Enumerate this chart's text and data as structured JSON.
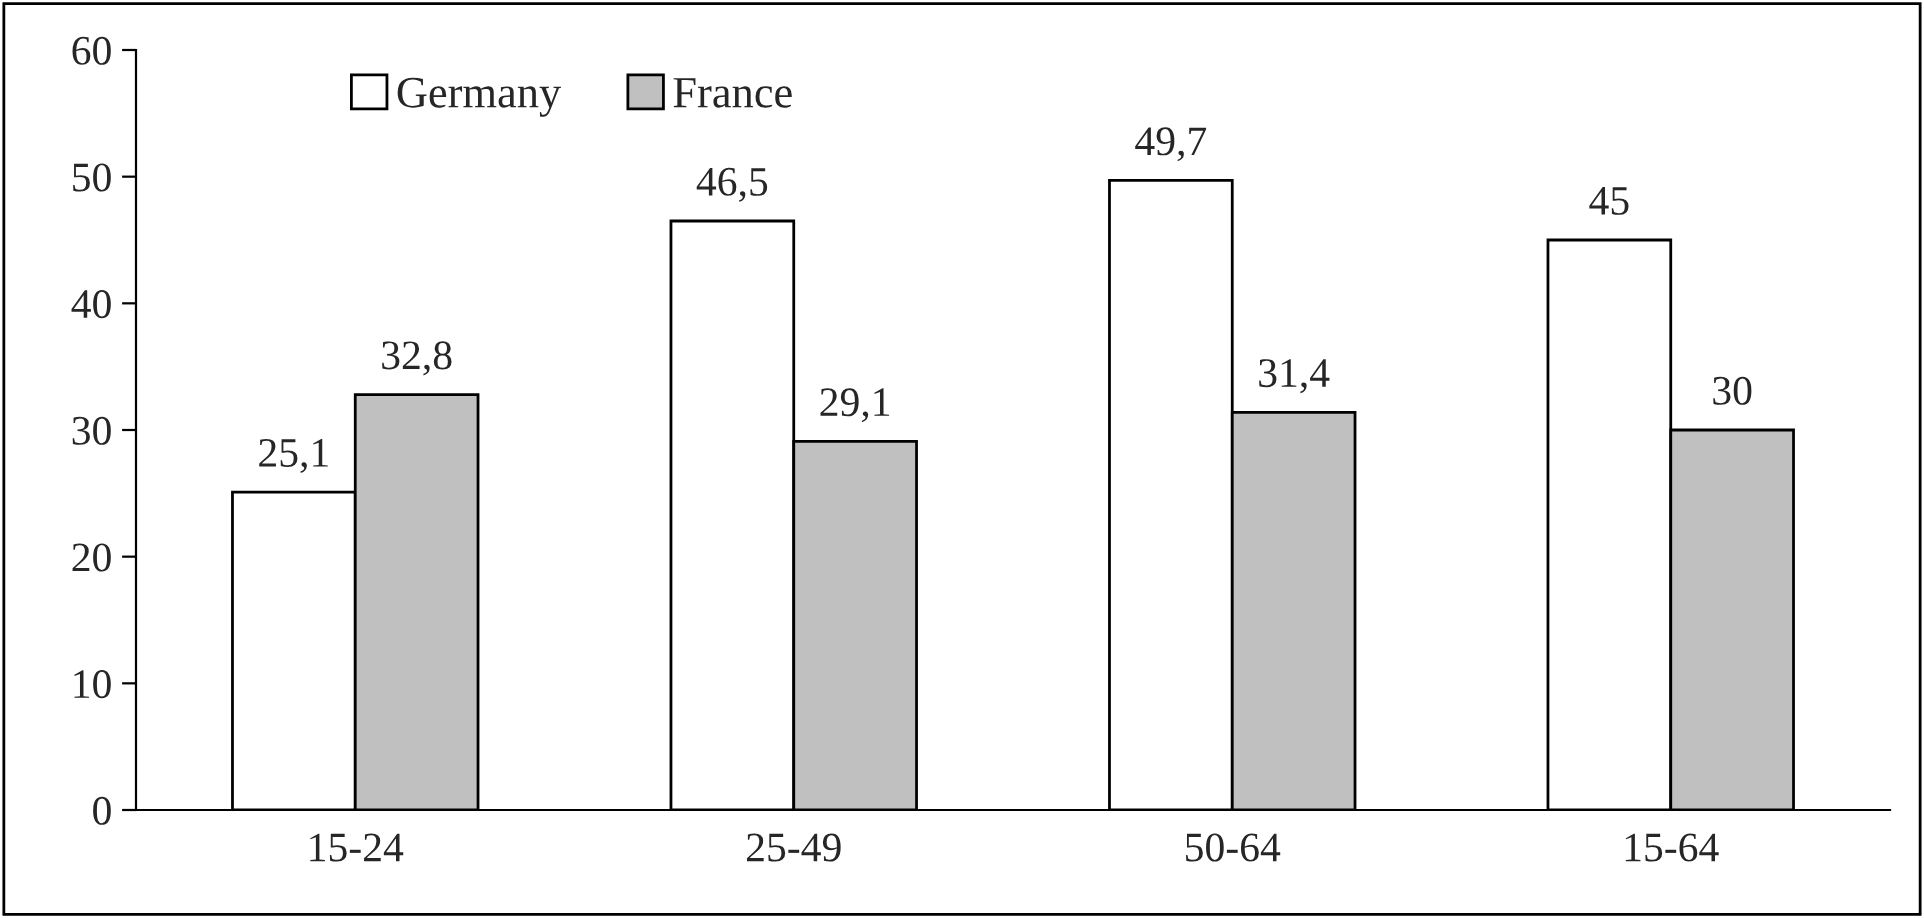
{
  "chart_data": {
    "type": "bar",
    "categories": [
      "15-24",
      "25-49",
      "50-64",
      "15-64"
    ],
    "series": [
      {
        "name": "Germany",
        "color": "#ffffff",
        "values": [
          25.1,
          46.5,
          49.7,
          45
        ],
        "value_labels": [
          "25,1",
          "46,5",
          "49,7",
          "45"
        ]
      },
      {
        "name": "France",
        "color": "#c0c0c0",
        "values": [
          32.8,
          29.1,
          31.4,
          30
        ],
        "value_labels": [
          "32,8",
          "29,1",
          "31,4",
          "30"
        ]
      }
    ],
    "ylim": [
      0,
      60
    ],
    "yticks": [
      0,
      10,
      20,
      30,
      40,
      50,
      60
    ],
    "grid": false,
    "legend": "top left"
  }
}
